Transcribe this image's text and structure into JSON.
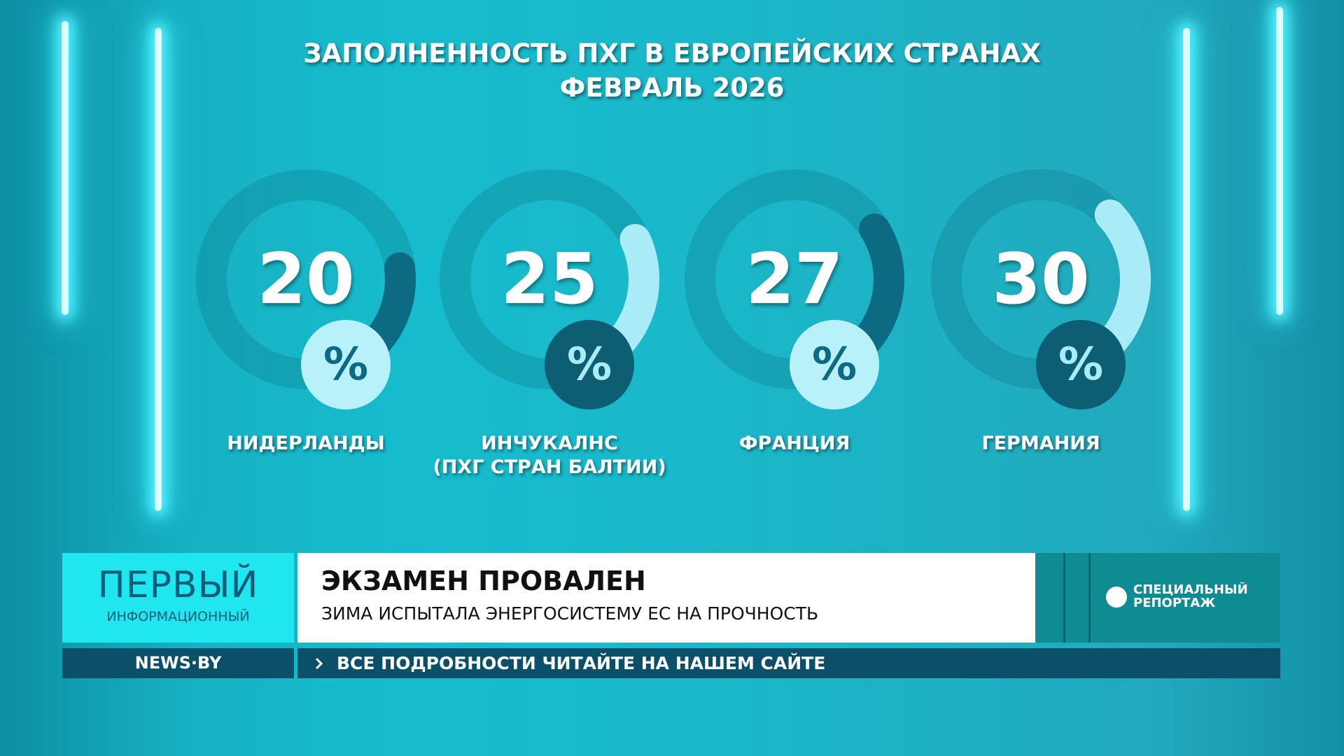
{
  "chart_data": {
    "type": "donut",
    "title": "ЗАПОЛНЕННОСТЬ ПХГ В ЕВРОПЕЙСКИХ СТРАНАХ",
    "subtitle": "ФЕВРАЛЬ 2026",
    "categories": [
      "НИДЕРЛАНДЫ",
      "ИНЧУКАЛНС\n(ПХГ СТРАН БАЛТИИ)",
      "ФРАНЦИЯ",
      "ГЕРМАНИЯ"
    ],
    "values": [
      20,
      25,
      27,
      30
    ],
    "unit": "%",
    "colors": [
      "#0c6a83",
      "#a9ecf7",
      "#0c6a83",
      "#a9ecf7"
    ],
    "badge_colors": [
      "#b8f1f9",
      "#0d5d73",
      "#b8f1f9",
      "#0d5d73"
    ]
  },
  "banner": {
    "logo_main": "ПЕРВЫЙ",
    "logo_sub": "ИНФОРМАЦИОННЫЙ",
    "headline": "ЭКЗАМЕН ПРОВАЛЕН",
    "subheadline": "ЗИМА ИСПЫТАЛА ЭНЕРГОСИСТЕМУ ЕС НА ПРОЧНОСТЬ",
    "rubric": "СПЕЦИАЛЬНЫЙ\nРЕПОРТАЖ",
    "site": "NEWS·BY",
    "ticker": "ВСЕ ПОДРОБНОСТИ ЧИТАЙТЕ НА НАШЕМ САЙТЕ"
  }
}
